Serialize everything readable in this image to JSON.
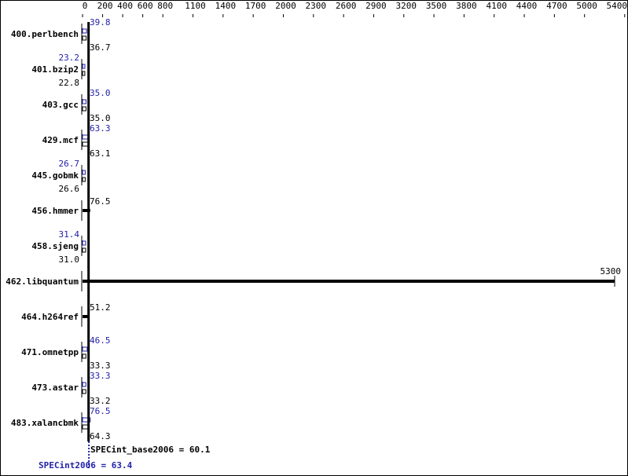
{
  "chart_data": {
    "type": "bar",
    "orientation": "horizontal",
    "x_ticks": [
      0,
      200,
      400,
      600,
      800,
      1100,
      1400,
      1700,
      2000,
      2300,
      2600,
      2900,
      3200,
      3500,
      3800,
      4100,
      4400,
      4700,
      5000,
      5400
    ],
    "xlim": [
      0,
      5400
    ],
    "axis_position": "top",
    "grid": false,
    "categories": [
      "400.perlbench",
      "401.bzip2",
      "403.gcc",
      "429.mcf",
      "445.gobmk",
      "456.hmmer",
      "458.sjeng",
      "462.libquantum",
      "464.h264ref",
      "471.omnetpp",
      "473.astar",
      "483.xalancbmk"
    ],
    "series": [
      {
        "name": "SPECint2006",
        "color": "#2222aa",
        "values": [
          39.8,
          23.2,
          35.0,
          63.3,
          26.7,
          null,
          31.4,
          null,
          null,
          46.5,
          33.3,
          76.5
        ],
        "labels": [
          "39.8",
          "23.2",
          "35.0",
          "63.3",
          "26.7",
          "",
          "31.4",
          "",
          "",
          "46.5",
          "33.3",
          "76.5"
        ]
      },
      {
        "name": "SPECint_base2006",
        "color": "#000000",
        "values": [
          36.7,
          22.8,
          35.0,
          63.1,
          26.6,
          76.5,
          31.0,
          5300,
          51.2,
          33.3,
          33.2,
          64.3
        ],
        "labels": [
          "36.7",
          "22.8",
          "35.0",
          "63.1",
          "26.6",
          "76.5",
          "31.0",
          "5300",
          "51.2",
          "33.3",
          "33.2",
          "64.3"
        ]
      }
    ],
    "means": {
      "base_label": "SPECint_base2006 = 60.1",
      "base_value": 60.1,
      "peak_label": "SPECint2006 = 63.4",
      "peak_value": 63.4
    }
  }
}
